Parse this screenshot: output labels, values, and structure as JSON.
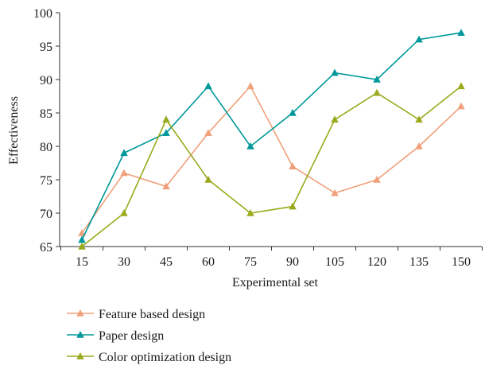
{
  "chart_data": {
    "type": "line",
    "xlabel": "Experimental set",
    "ylabel": "Effectiveness",
    "ylim": [
      65,
      100
    ],
    "yticks": [
      65,
      70,
      75,
      80,
      85,
      90,
      95,
      100
    ],
    "categories": [
      "15",
      "30",
      "45",
      "60",
      "75",
      "90",
      "105",
      "120",
      "135",
      "150"
    ],
    "grid": false,
    "legend_position": "bottom-left",
    "marker": "triangle",
    "series": [
      {
        "name": "Feature based design",
        "color": "#F0A07A",
        "values": [
          67,
          76,
          74,
          82,
          89,
          77,
          73,
          75,
          80,
          86
        ]
      },
      {
        "name": "Paper design",
        "color": "#00989A",
        "values": [
          66,
          79,
          82,
          89,
          80,
          85,
          91,
          90,
          96,
          97
        ]
      },
      {
        "name": "Color optimization design",
        "color": "#9AAA1C",
        "values": [
          65,
          70,
          84,
          75,
          70,
          71,
          84,
          88,
          84,
          89
        ]
      }
    ]
  }
}
